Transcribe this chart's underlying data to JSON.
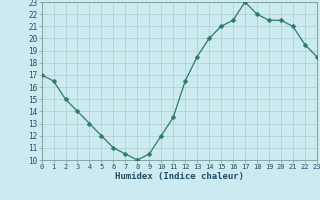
{
  "x": [
    0,
    1,
    2,
    3,
    4,
    5,
    6,
    7,
    8,
    9,
    10,
    11,
    12,
    13,
    14,
    15,
    16,
    17,
    18,
    19,
    20,
    21,
    22,
    23
  ],
  "y": [
    17,
    16.5,
    15,
    14,
    13,
    12,
    11,
    10.5,
    10,
    10.5,
    12,
    13.5,
    16.5,
    18.5,
    20,
    21,
    21.5,
    23,
    22,
    21.5,
    21.5,
    21,
    19.5,
    18.5
  ],
  "xlabel": "Humidex (Indice chaleur)",
  "ylim": [
    10,
    23
  ],
  "xlim": [
    0,
    23
  ],
  "line_color": "#2d7b6e",
  "marker": "D",
  "marker_size": 2.5,
  "bg_color": "#cceaf0",
  "grid_color": "#aacfcf",
  "yticks": [
    10,
    11,
    12,
    13,
    14,
    15,
    16,
    17,
    18,
    19,
    20,
    21,
    22,
    23
  ],
  "xtick_labels": [
    "0",
    "1",
    "2",
    "3",
    "4",
    "5",
    "6",
    "7",
    "8",
    "9",
    "10",
    "11",
    "12",
    "13",
    "14",
    "15",
    "16",
    "17",
    "18",
    "19",
    "20",
    "21",
    "22",
    "23"
  ],
  "xlabel_color": "#1a4f6e",
  "tick_color": "#1a4f6e",
  "spine_color": "#7a9a9a"
}
